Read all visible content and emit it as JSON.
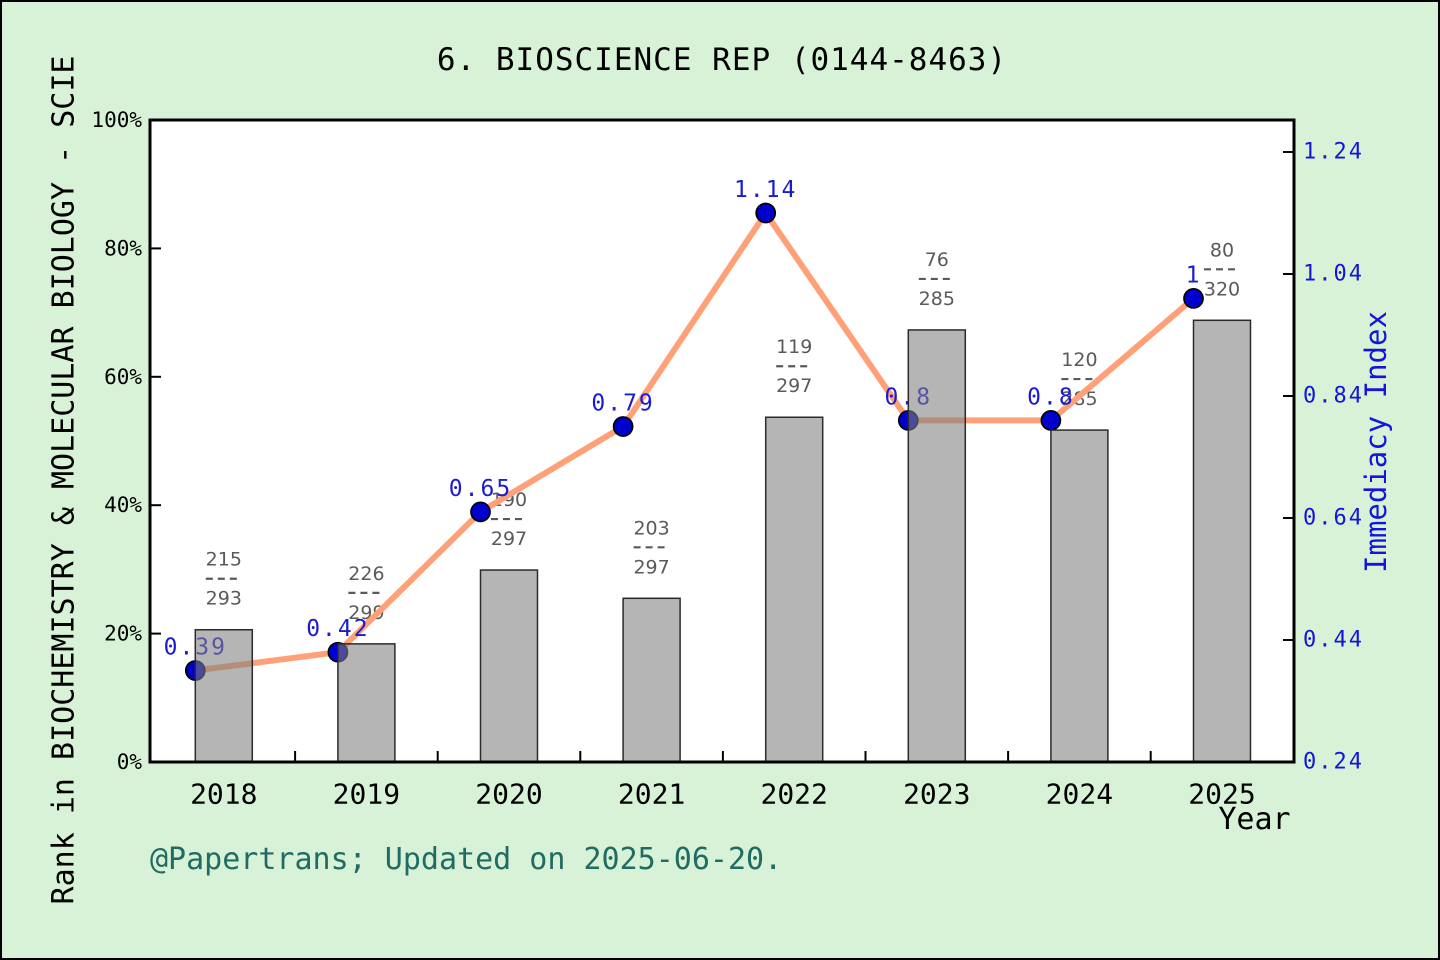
{
  "title": "6. BIOSCIENCE REP (0144-8463)",
  "footer": "@Papertrans; Updated on 2025-06-20.",
  "chart_data": {
    "type": "bar+line",
    "title": "6. BIOSCIENCE REP (0144-8463)",
    "x": [
      "2018",
      "2019",
      "2020",
      "2021",
      "2022",
      "2023",
      "2024",
      "2025"
    ],
    "xlabel": "Year",
    "left_axis": {
      "label": "Rank in BIOCHEMISTRY & MOLECULAR BIOLOGY - SCIE",
      "ticks": [
        "0%",
        "20%",
        "40%",
        "60%",
        "80%",
        "100%"
      ],
      "range": [
        0,
        100
      ],
      "grid": false
    },
    "right_axis": {
      "label": "Immediacy Index",
      "ticks": [
        "0.24",
        "0.44",
        "0.64",
        "0.84",
        "1.04",
        "1.24"
      ],
      "range": [
        0.24,
        1.24
      ]
    },
    "series": [
      {
        "name": "rank_bars",
        "type": "bar",
        "fractions": [
          {
            "num": "215",
            "den": "293"
          },
          {
            "num": "226",
            "den": "299"
          },
          {
            "num": "190",
            "den": "297"
          },
          {
            "num": "203",
            "den": "297"
          },
          {
            "num": "119",
            "den": "297"
          },
          {
            "num": "76",
            "den": "285"
          },
          {
            "num": "120",
            "den": "285"
          },
          {
            "num": "80",
            "den": "320"
          }
        ],
        "bar_percent": [
          20.6,
          18.4,
          29.9,
          25.5,
          53.7,
          67.3,
          51.7,
          68.8
        ]
      },
      {
        "name": "immediacy_index",
        "type": "line",
        "values": [
          0.39,
          0.42,
          0.65,
          0.79,
          1.14,
          0.8,
          0.8,
          1
        ],
        "labels": [
          "0.39",
          "0.42",
          "0.65",
          "0.79",
          "1.14",
          "0.8",
          "0.8",
          "1"
        ]
      }
    ],
    "colors": {
      "background": "#d7f2d7",
      "plot_background": "#ffffff",
      "bar": "#7f7f7f",
      "bar_edge": "#2b2b2b",
      "line": "#ffa078",
      "marker": "#0000cd",
      "value_label": "#1b1bd0",
      "right_axis": "#1414dc",
      "fraction": "#5a5a5a",
      "axis": "#000000",
      "footer": "#206b63"
    }
  }
}
